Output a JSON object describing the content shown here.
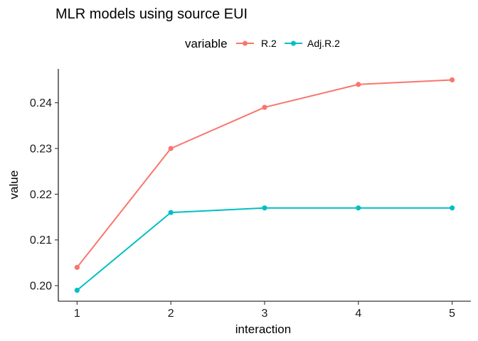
{
  "chart_data": {
    "type": "line",
    "title": "MLR models using source EUI",
    "xlabel": "interaction",
    "ylabel": "value",
    "x": [
      1,
      2,
      3,
      4,
      5
    ],
    "xticks": [
      "1",
      "2",
      "3",
      "4",
      "5"
    ],
    "xlim": [
      0.8,
      5.2
    ],
    "yticks": [
      "0.20",
      "0.21",
      "0.22",
      "0.23",
      "0.24"
    ],
    "ylim": [
      0.1966,
      0.2474
    ],
    "grid": false,
    "legend_title": "variable",
    "legend_position": "top",
    "series": [
      {
        "name": "R.2",
        "color": "#F8766D",
        "values": [
          0.204,
          0.23,
          0.239,
          0.244,
          0.245
        ]
      },
      {
        "name": "Adj.R.2",
        "color": "#00BFC4",
        "values": [
          0.199,
          0.216,
          0.217,
          0.217,
          0.217
        ]
      }
    ]
  }
}
